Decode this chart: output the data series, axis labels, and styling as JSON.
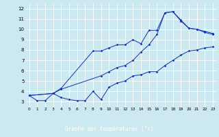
{
  "xlabel": "Graphe des températures (°c)",
  "xlim": [
    -0.5,
    23.5
  ],
  "ylim": [
    2.5,
    12.5
  ],
  "yticks": [
    3,
    4,
    5,
    6,
    7,
    8,
    9,
    10,
    11,
    12
  ],
  "xticks": [
    0,
    1,
    2,
    3,
    4,
    5,
    6,
    7,
    8,
    9,
    10,
    11,
    12,
    13,
    14,
    15,
    16,
    17,
    18,
    19,
    20,
    21,
    22,
    23
  ],
  "bg_color": "#cce8f0",
  "grid_color": "#ffffff",
  "line_color": "#1133aa",
  "xlabel_bg": "#2244bb",
  "line1_x": [
    0,
    1,
    2,
    3,
    4,
    5,
    6,
    7,
    8,
    9,
    10,
    11,
    12,
    13,
    14,
    15,
    16,
    17,
    18,
    19,
    20,
    21,
    22,
    23
  ],
  "line1_y": [
    3.6,
    3.1,
    3.1,
    3.8,
    3.4,
    3.2,
    3.1,
    3.1,
    4.0,
    3.2,
    4.4,
    4.8,
    5.0,
    5.5,
    5.6,
    5.9,
    5.9,
    6.5,
    7.0,
    7.5,
    7.9,
    8.0,
    8.2,
    8.3
  ],
  "line2_x": [
    0,
    3,
    4,
    8,
    9,
    10,
    11,
    12,
    13,
    14,
    15,
    16,
    17,
    18,
    19,
    20,
    21,
    22,
    23
  ],
  "line2_y": [
    3.6,
    3.8,
    4.3,
    7.9,
    7.9,
    8.2,
    8.5,
    8.5,
    9.0,
    8.6,
    9.9,
    9.9,
    11.6,
    11.7,
    10.9,
    10.1,
    10.0,
    9.8,
    9.6
  ],
  "line3_x": [
    0,
    3,
    4,
    9,
    10,
    11,
    12,
    13,
    14,
    15,
    16,
    17,
    18,
    19,
    20,
    21,
    22,
    23
  ],
  "line3_y": [
    3.6,
    3.8,
    4.2,
    5.5,
    5.9,
    6.3,
    6.5,
    7.0,
    7.8,
    8.5,
    9.5,
    11.6,
    11.7,
    10.8,
    10.1,
    10.0,
    9.7,
    9.5
  ]
}
